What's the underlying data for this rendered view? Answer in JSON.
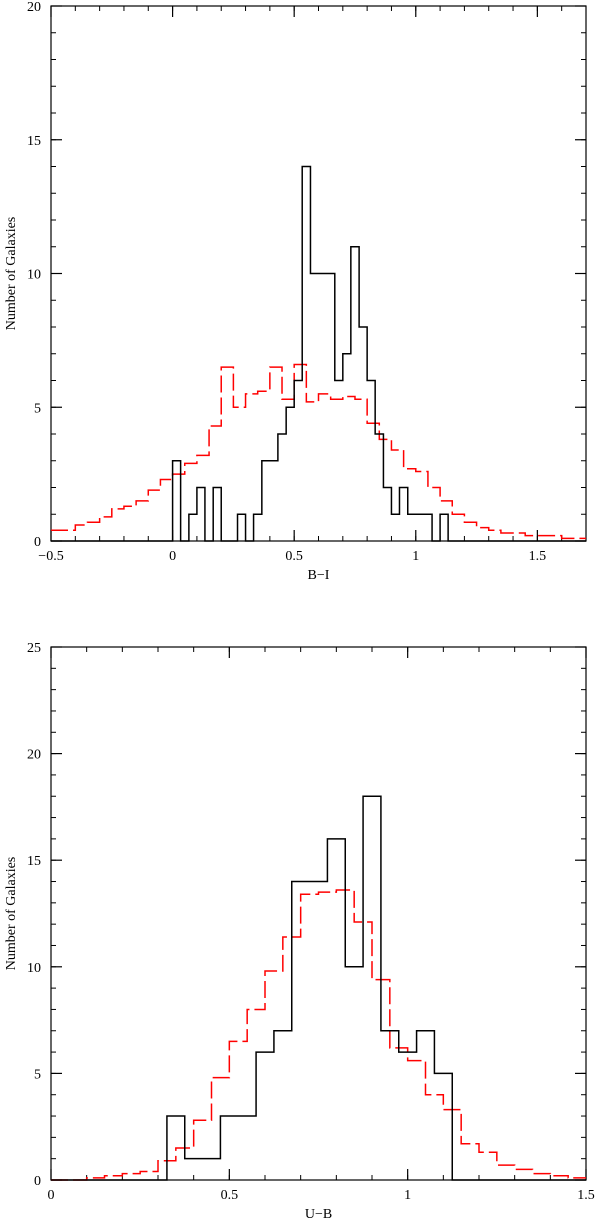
{
  "chart_data": [
    {
      "type": "histogram",
      "xlabel": "B−I",
      "ylabel": "Number of Galaxies",
      "xlim": [
        -0.5,
        1.7
      ],
      "ylim": [
        0,
        20
      ],
      "x_ticks": [
        -0.5,
        0,
        0.5,
        1,
        1.5
      ],
      "x_tick_labels": [
        "−0.5",
        "0",
        "0.5",
        "1",
        "1.5"
      ],
      "y_ticks": [
        0,
        5,
        10,
        15,
        20
      ],
      "y_tick_labels": [
        "0",
        "5",
        "10",
        "15",
        "20"
      ],
      "grid": false,
      "series": [
        {
          "style": "solid",
          "color": "#000000",
          "bin_edges": [
            -0.5,
            -0.467,
            -0.433,
            -0.4,
            -0.367,
            -0.333,
            -0.3,
            -0.267,
            -0.233,
            -0.2,
            -0.167,
            -0.133,
            -0.1,
            -0.067,
            -0.033,
            0,
            0.033,
            0.067,
            0.1,
            0.133,
            0.167,
            0.2,
            0.233,
            0.267,
            0.3,
            0.333,
            0.367,
            0.4,
            0.433,
            0.467,
            0.5,
            0.533,
            0.567,
            0.6,
            0.633,
            0.667,
            0.7,
            0.733,
            0.767,
            0.8,
            0.833,
            0.867,
            0.9,
            0.933,
            0.967,
            1,
            1.033,
            1.067,
            1.1,
            1.133,
            1.167,
            1.2,
            1.233,
            1.267,
            1.3,
            1.333,
            1.367,
            1.4,
            1.433,
            1.467,
            1.5,
            1.533,
            1.567,
            1.6,
            1.633,
            1.667,
            1.7
          ],
          "values": [
            0,
            0,
            0,
            0,
            0,
            0,
            0,
            0,
            0,
            0,
            0,
            0,
            0,
            0,
            0,
            3,
            0,
            1,
            2,
            0,
            2,
            0,
            0,
            1,
            0,
            1,
            3,
            3,
            4,
            5,
            6,
            14,
            10,
            10,
            10,
            6,
            7,
            11,
            8,
            6,
            4,
            2,
            1,
            2,
            1,
            1,
            1,
            0,
            1,
            0,
            0,
            0,
            0,
            0,
            0,
            0,
            0,
            0,
            0,
            0,
            0,
            0,
            0,
            0,
            0,
            0
          ]
        },
        {
          "style": "dashed",
          "color": "#ff0000",
          "bin_edges": [
            -0.5,
            -0.45,
            -0.4,
            -0.35,
            -0.3,
            -0.25,
            -0.2,
            -0.15,
            -0.1,
            -0.05,
            0,
            0.05,
            0.1,
            0.15,
            0.2,
            0.25,
            0.3,
            0.35,
            0.4,
            0.45,
            0.5,
            0.55,
            0.6,
            0.65,
            0.7,
            0.75,
            0.8,
            0.85,
            0.9,
            0.95,
            1,
            1.05,
            1.1,
            1.15,
            1.2,
            1.25,
            1.3,
            1.35,
            1.4,
            1.45,
            1.5,
            1.55,
            1.6,
            1.65,
            1.7
          ],
          "values": [
            0.4,
            0.4,
            0.6,
            0.7,
            0.9,
            1.2,
            1.3,
            1.5,
            1.9,
            2.3,
            2.5,
            2.9,
            3.2,
            4.3,
            6.5,
            5.0,
            5.5,
            5.6,
            6.5,
            5.3,
            6.6,
            5.2,
            5.5,
            5.3,
            5.4,
            5.3,
            4.4,
            3.8,
            3.4,
            2.7,
            2.6,
            2.0,
            1.5,
            1.0,
            0.7,
            0.5,
            0.4,
            0.3,
            0.3,
            0.2,
            0.2,
            0.2,
            0.1,
            0.1
          ]
        }
      ]
    },
    {
      "type": "histogram",
      "xlabel": "U−B",
      "ylabel": "Number of Galaxies",
      "xlim": [
        0,
        1.5
      ],
      "ylim": [
        0,
        25
      ],
      "x_ticks": [
        0,
        0.5,
        1,
        1.5
      ],
      "x_tick_labels": [
        "0",
        "0.5",
        "1",
        "1.5"
      ],
      "y_ticks": [
        0,
        5,
        10,
        15,
        20,
        25
      ],
      "y_tick_labels": [
        "0",
        "5",
        "10",
        "15",
        "20",
        "25"
      ],
      "grid": false,
      "series": [
        {
          "style": "solid",
          "color": "#000000",
          "bin_edges": [
            0,
            0.05,
            0.1,
            0.15,
            0.2,
            0.25,
            0.3,
            0.325,
            0.375,
            0.425,
            0.475,
            0.525,
            0.575,
            0.625,
            0.675,
            0.725,
            0.775,
            0.825,
            0.875,
            0.925,
            0.975,
            1.025,
            1.075,
            1.125,
            1.175,
            1.5
          ],
          "values": [
            0,
            0,
            0,
            0,
            0,
            0,
            0,
            3,
            1,
            1,
            3,
            3,
            6,
            7,
            14,
            14,
            16,
            10,
            18,
            7,
            6,
            7,
            5,
            0,
            0
          ]
        },
        {
          "style": "dashed",
          "color": "#ff0000",
          "bin_edges": [
            0,
            0.05,
            0.1,
            0.15,
            0.2,
            0.25,
            0.3,
            0.35,
            0.4,
            0.45,
            0.5,
            0.55,
            0.6,
            0.65,
            0.7,
            0.75,
            0.8,
            0.85,
            0.9,
            0.95,
            1,
            1.05,
            1.1,
            1.15,
            1.2,
            1.25,
            1.3,
            1.35,
            1.4,
            1.45,
            1.5
          ],
          "values": [
            0,
            0,
            0.1,
            0.2,
            0.3,
            0.4,
            0.9,
            1.5,
            2.8,
            4.8,
            6.5,
            8.0,
            9.8,
            11.4,
            13.4,
            13.5,
            13.6,
            12.1,
            9.4,
            6.2,
            5.6,
            4.0,
            3.3,
            1.7,
            1.3,
            0.7,
            0.5,
            0.3,
            0.2,
            0.1
          ]
        }
      ]
    }
  ]
}
